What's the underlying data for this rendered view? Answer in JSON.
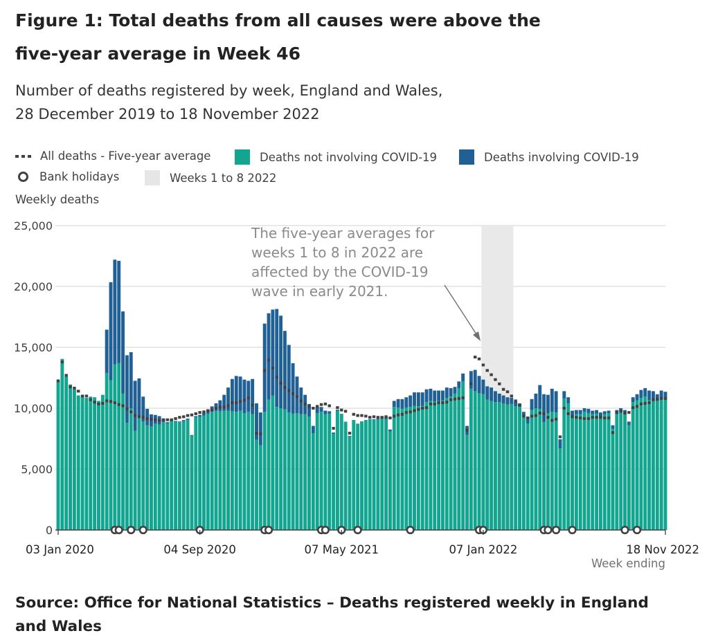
{
  "title": "Figure 1: Total deaths from all causes were above the five-year average in Week 46",
  "subtitle": "Number of deaths registered by week, England and Wales, 28 December 2019 to 18 November 2022",
  "legend": {
    "items": [
      {
        "label": "All deaths - Five-year average",
        "symbol": "dashed-line",
        "color": "#414042"
      },
      {
        "label": "Deaths not involving COVID-19",
        "symbol": "box",
        "color": "#12a58f"
      },
      {
        "label": "Deaths involving COVID-19",
        "symbol": "box",
        "color": "#206095"
      },
      {
        "label": "Bank holidays",
        "symbol": "circle",
        "color": "#414042"
      },
      {
        "label": "Weeks 1 to 8 2022",
        "symbol": "box",
        "color": "#e9e9e9"
      }
    ]
  },
  "source": "Source: Office for National Statistics – Deaths registered weekly in England and Wales",
  "chart_data": {
    "type": "bar",
    "stacked": true,
    "title": "Figure 1: Total deaths from all causes were above the five-year average in Week 46",
    "subtitle": "Number of deaths registered by week, England and Wales, 28 December 2019 to 18 November 2022",
    "ylabel": "Weekly deaths",
    "xlabel": "Week ending",
    "ylim": [
      0,
      25000
    ],
    "yticks": [
      0,
      5000,
      10000,
      15000,
      20000,
      25000
    ],
    "ytick_labels": [
      "0",
      "5,000",
      "10,000",
      "15,000",
      "20,000",
      "25,000"
    ],
    "xtick_labels": [
      {
        "label": "03 Jan 2020",
        "week_index": 0
      },
      {
        "label": "04 Sep 2020",
        "week_index": 35
      },
      {
        "label": "07 May 2021",
        "week_index": 70
      },
      {
        "label": "07 Jan 2022",
        "week_index": 105
      },
      {
        "label": "18 Nov 2022",
        "week_index": 150
      }
    ],
    "grid": true,
    "legend_position": "top",
    "start_week": "03 Jan 2020",
    "end_week": "18 Nov 2022",
    "series": [
      {
        "name": "Deaths not involving COVID-19",
        "color": "#12a58f",
        "values": [
          12250,
          14050,
          12600,
          11950,
          11550,
          11050,
          10950,
          10850,
          10950,
          10900,
          10600,
          11100,
          12900,
          12300,
          13600,
          13700,
          11200,
          8800,
          10000,
          8150,
          9350,
          8900,
          8600,
          8500,
          8750,
          8650,
          8850,
          8750,
          8950,
          8900,
          8850,
          8950,
          9050,
          7750,
          9250,
          9300,
          9400,
          9550,
          9700,
          9800,
          9750,
          9800,
          9800,
          9750,
          9700,
          9800,
          9600,
          9700,
          9500,
          7400,
          6950,
          9700,
          10700,
          11050,
          10100,
          10000,
          9900,
          9650,
          9550,
          9600,
          9500,
          9500,
          9300,
          7950,
          9600,
          9700,
          9500,
          9550,
          7900,
          9800,
          9500,
          8850,
          7700,
          9000,
          8700,
          8900,
          9000,
          9050,
          9050,
          9100,
          9200,
          9100,
          8100,
          10100,
          10050,
          9950,
          10050,
          10100,
          10200,
          10150,
          10200,
          10500,
          10600,
          10550,
          10600,
          10650,
          10850,
          10950,
          11200,
          11650,
          12200,
          7800,
          11600,
          11400,
          11250,
          11150,
          10700,
          10600,
          10500,
          10500,
          10400,
          10300,
          10350,
          10150,
          10100,
          9400,
          8750,
          9850,
          10000,
          9950,
          8850,
          9600,
          9700,
          9650,
          6700,
          10800,
          10400,
          9400,
          9500,
          9500,
          9700,
          9600,
          9500,
          9550,
          9300,
          9500,
          9600,
          8300,
          9500,
          9700,
          9650,
          8600,
          10500,
          10650,
          10850,
          10950,
          10650,
          10700,
          10600,
          10850,
          10800
        ]
      },
      {
        "name": "Deaths involving COVID-19",
        "color": "#206095",
        "values": [
          0,
          0,
          0,
          0,
          0,
          0,
          0,
          0,
          0,
          0,
          0,
          0,
          3550,
          8050,
          8600,
          8400,
          6750,
          5550,
          4600,
          4100,
          3100,
          2050,
          1350,
          1000,
          700,
          700,
          300,
          100,
          100,
          60,
          60,
          80,
          100,
          50,
          100,
          150,
          200,
          300,
          450,
          600,
          900,
          1300,
          1900,
          2650,
          2950,
          2800,
          2750,
          2550,
          2900,
          3000,
          2700,
          7250,
          7100,
          7050,
          8050,
          7600,
          6450,
          5550,
          4150,
          3000,
          2200,
          1600,
          1050,
          600,
          500,
          400,
          300,
          200,
          100,
          80,
          40,
          40,
          30,
          30,
          30,
          20,
          30,
          50,
          50,
          60,
          100,
          150,
          150,
          500,
          700,
          800,
          850,
          950,
          1100,
          1150,
          1100,
          1050,
          1000,
          900,
          850,
          800,
          850,
          700,
          550,
          550,
          650,
          750,
          1450,
          1750,
          1400,
          1200,
          1100,
          1100,
          900,
          700,
          650,
          600,
          500,
          400,
          300,
          300,
          550,
          900,
          1200,
          1950,
          2300,
          1500,
          1900,
          1750,
          750,
          600,
          500,
          400,
          350,
          350,
          300,
          350,
          300,
          300,
          350,
          250,
          200,
          300,
          350,
          300,
          200,
          300,
          400,
          500,
          650,
          700,
          800,
          700,
          550,
          600,
          550,
          500
        ]
      }
    ],
    "five_year_average": {
      "name": "All deaths - Five-year average",
      "color": "#414042",
      "values": [
        12250,
        13800,
        12700,
        11750,
        11650,
        11400,
        11000,
        11000,
        10700,
        10500,
        10350,
        10400,
        10600,
        10550,
        10450,
        10300,
        10200,
        9950,
        9700,
        9400,
        9300,
        9250,
        9150,
        9100,
        9050,
        9000,
        9050,
        9050,
        9050,
        9150,
        9250,
        9300,
        9400,
        9450,
        9550,
        9650,
        9700,
        9800,
        9850,
        10000,
        10100,
        10100,
        10200,
        10450,
        10450,
        10550,
        10650,
        10850,
        10250,
        7950,
        7900,
        13100,
        13950,
        13300,
        12550,
        12050,
        11700,
        11450,
        11200,
        10950,
        10600,
        10350,
        10150,
        10000,
        10150,
        10300,
        10350,
        10200,
        8350,
        10050,
        9850,
        9750,
        7950,
        9500,
        9400,
        9400,
        9350,
        9250,
        9300,
        9250,
        9250,
        9300,
        9200,
        9350,
        9450,
        9500,
        9650,
        9700,
        9800,
        9900,
        10000,
        10050,
        10350,
        10350,
        10450,
        10450,
        10500,
        10700,
        10750,
        10800,
        10850,
        8200,
        12000,
        14200,
        14050,
        13550,
        13100,
        12750,
        12350,
        12000,
        11550,
        11350,
        11000,
        10600,
        10250,
        9350,
        9200,
        9350,
        9400,
        9600,
        9550,
        9250,
        9000,
        9100,
        7650,
        10000,
        9550,
        9300,
        9250,
        9200,
        9150,
        9150,
        9250,
        9250,
        9250,
        9200,
        9200,
        8000,
        9650,
        9750,
        9600,
        9650,
        10050,
        10150,
        10350,
        10400,
        10450,
        10700,
        10750,
        10800,
        10800
      ]
    },
    "bank_holiday_weeks": [
      14,
      15,
      18,
      21,
      35,
      51,
      52,
      65,
      66,
      70,
      74,
      87,
      104,
      105,
      120,
      121,
      123,
      127,
      140,
      143
    ],
    "highlight_region": {
      "label": "Weeks 1 to 8 2022",
      "start_week_index": 105,
      "end_week_index": 112,
      "color": "#e9e9e9"
    },
    "annotation": {
      "text_lines": [
        "The five-year averages for",
        "weeks 1 to 8 in 2022 are",
        "affected by the COVID-19",
        "wave in early 2021."
      ],
      "points_to_week_index": 105
    }
  }
}
